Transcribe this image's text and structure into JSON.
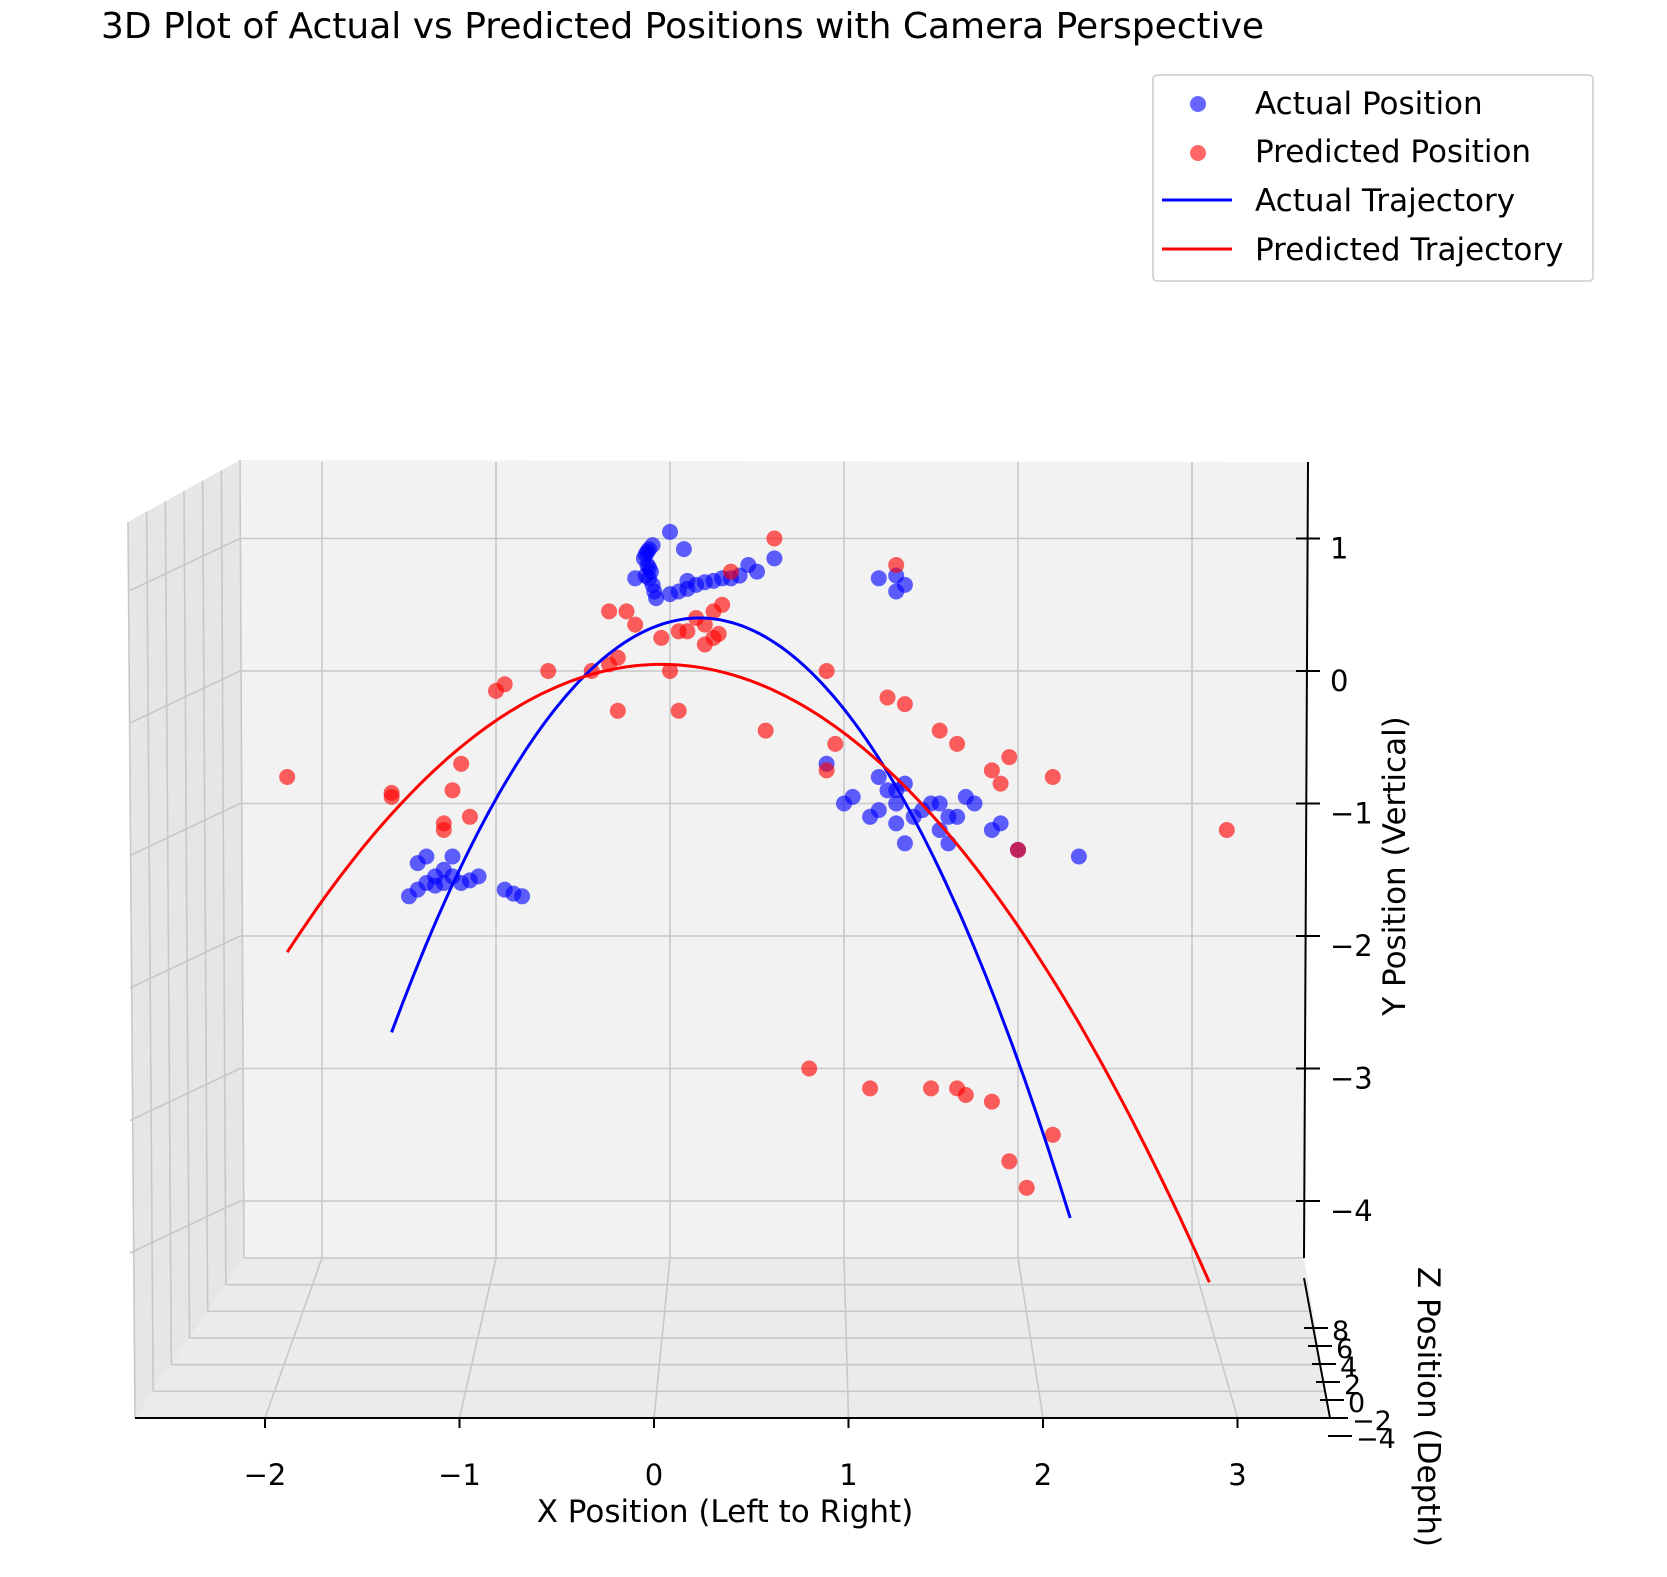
{
  "chart_data": {
    "type": "scatter",
    "projection": "3d",
    "title": "3D Plot of Actual vs Predicted Positions with Camera Perspective",
    "xlabel": "X Position (Left to Right)",
    "ylabel": "Y Position (Vertical)",
    "zlabel": "Z Position (Depth)",
    "xlim": [
      -2.6,
      3.5
    ],
    "ylim": [
      -4.5,
      1.5
    ],
    "zlim": [
      -4,
      9
    ],
    "x_ticks": [
      "−2",
      "−1",
      "0",
      "1",
      "2",
      "3"
    ],
    "y_ticks": [
      "1",
      "0",
      "−1",
      "−2",
      "−3",
      "−4"
    ],
    "z_ticks": [
      "8",
      "6",
      "4",
      "2",
      "0",
      "−2",
      "−4"
    ],
    "grid": true,
    "legend_position": "top-right",
    "legend": [
      "Actual Position",
      "Predicted Position",
      "Actual Trajectory",
      "Predicted Trajectory"
    ],
    "colors": {
      "actual": "#0000ff",
      "predicted": "#ff0000"
    },
    "series": [
      {
        "name": "Actual Position",
        "kind": "scatter",
        "color": "#0000ff",
        "points": [
          [
            -0.1,
            0.95
          ],
          [
            -0.12,
            0.92
          ],
          [
            -0.13,
            0.9
          ],
          [
            -0.14,
            0.88
          ],
          [
            -0.15,
            0.85
          ],
          [
            -0.13,
            0.8
          ],
          [
            -0.12,
            0.78
          ],
          [
            -0.11,
            0.75
          ],
          [
            -0.14,
            0.72
          ],
          [
            -0.12,
            0.7
          ],
          [
            -0.1,
            0.65
          ],
          [
            -0.09,
            0.6
          ],
          [
            -0.08,
            0.55
          ],
          [
            0.0,
            0.58
          ],
          [
            0.05,
            0.6
          ],
          [
            0.1,
            0.62
          ],
          [
            0.15,
            0.65
          ],
          [
            0.2,
            0.67
          ],
          [
            0.25,
            0.68
          ],
          [
            0.3,
            0.7
          ],
          [
            0.4,
            0.72
          ],
          [
            0.5,
            0.75
          ],
          [
            0.45,
            0.8
          ],
          [
            0.6,
            0.85
          ],
          [
            0.1,
            0.68
          ],
          [
            0.08,
            0.92
          ],
          [
            0.0,
            1.05
          ],
          [
            -0.2,
            0.7
          ],
          [
            0.35,
            0.7
          ],
          [
            1.2,
            0.7
          ],
          [
            1.3,
            0.72
          ],
          [
            1.35,
            0.65
          ],
          [
            1.3,
            0.6
          ],
          [
            -1.5,
            -1.7
          ],
          [
            -1.45,
            -1.65
          ],
          [
            -1.4,
            -1.6
          ],
          [
            -1.35,
            -1.62
          ],
          [
            -1.3,
            -1.6
          ],
          [
            -1.25,
            -1.55
          ],
          [
            -1.2,
            -1.6
          ],
          [
            -1.15,
            -1.58
          ],
          [
            -1.1,
            -1.55
          ],
          [
            -1.45,
            -1.45
          ],
          [
            -1.4,
            -1.4
          ],
          [
            -1.3,
            -1.5
          ],
          [
            -1.25,
            -1.4
          ],
          [
            -0.95,
            -1.65
          ],
          [
            -0.9,
            -1.68
          ],
          [
            -0.85,
            -1.7
          ],
          [
            -1.35,
            -1.55
          ],
          [
            0.9,
            -0.7
          ],
          [
            1.0,
            -1.0
          ],
          [
            1.05,
            -0.95
          ],
          [
            1.15,
            -1.1
          ],
          [
            1.2,
            -1.05
          ],
          [
            1.25,
            -0.9
          ],
          [
            1.3,
            -0.9
          ],
          [
            1.3,
            -1.0
          ],
          [
            1.35,
            -0.85
          ],
          [
            1.4,
            -1.1
          ],
          [
            1.45,
            -1.05
          ],
          [
            1.5,
            -1.0
          ],
          [
            1.55,
            -1.0
          ],
          [
            1.6,
            -1.1
          ],
          [
            1.65,
            -1.1
          ],
          [
            1.7,
            -0.95
          ],
          [
            1.75,
            -1.0
          ],
          [
            1.85,
            -1.2
          ],
          [
            1.9,
            -1.15
          ],
          [
            1.35,
            -1.3
          ],
          [
            1.3,
            -1.15
          ],
          [
            1.6,
            -1.3
          ],
          [
            1.2,
            -0.8
          ],
          [
            2.0,
            -1.35
          ],
          [
            2.35,
            -1.4
          ],
          [
            1.55,
            -1.2
          ]
        ]
      },
      {
        "name": "Predicted Position",
        "kind": "scatter",
        "color": "#ff0000",
        "points": [
          [
            0.6,
            1.0
          ],
          [
            1.3,
            0.8
          ],
          [
            0.35,
            0.75
          ],
          [
            -0.35,
            0.45
          ],
          [
            -0.25,
            0.45
          ],
          [
            -0.2,
            0.35
          ],
          [
            0.05,
            0.3
          ],
          [
            -0.05,
            0.25
          ],
          [
            0.15,
            0.4
          ],
          [
            0.2,
            0.35
          ],
          [
            0.25,
            0.45
          ],
          [
            0.3,
            0.5
          ],
          [
            0.1,
            0.3
          ],
          [
            0.25,
            0.25
          ],
          [
            0.2,
            0.2
          ],
          [
            0.28,
            0.28
          ],
          [
            -0.3,
            0.1
          ],
          [
            -0.35,
            0.05
          ],
          [
            -0.45,
            0.0
          ],
          [
            -0.7,
            0.0
          ],
          [
            -0.95,
            -0.1
          ],
          [
            -1.0,
            -0.15
          ],
          [
            -0.3,
            -0.3
          ],
          [
            0.0,
            0.0
          ],
          [
            0.05,
            -0.3
          ],
          [
            0.9,
            0.0
          ],
          [
            1.25,
            -0.2
          ],
          [
            1.35,
            -0.25
          ],
          [
            1.55,
            -0.45
          ],
          [
            1.65,
            -0.55
          ],
          [
            0.55,
            -0.45
          ],
          [
            0.95,
            -0.55
          ],
          [
            0.9,
            -0.75
          ],
          [
            1.85,
            -0.75
          ],
          [
            1.95,
            -0.65
          ],
          [
            1.9,
            -0.85
          ],
          [
            2.2,
            -0.8
          ],
          [
            -1.2,
            -0.7
          ],
          [
            -1.25,
            -0.9
          ],
          [
            -1.15,
            -1.1
          ],
          [
            -1.3,
            -1.15
          ],
          [
            -1.3,
            -1.2
          ],
          [
            -1.6,
            -0.95
          ],
          [
            -1.6,
            -0.92
          ],
          [
            -2.2,
            -0.8
          ],
          [
            3.2,
            -1.2
          ],
          [
            2.0,
            -1.35
          ],
          [
            0.8,
            -3.0
          ],
          [
            1.15,
            -3.15
          ],
          [
            1.5,
            -3.15
          ],
          [
            1.65,
            -3.15
          ],
          [
            1.7,
            -3.2
          ],
          [
            1.85,
            -3.25
          ],
          [
            2.2,
            -3.5
          ],
          [
            1.95,
            -3.7
          ],
          [
            2.05,
            -3.9
          ]
        ]
      },
      {
        "name": "Actual Trajectory",
        "kind": "line",
        "color": "#0000ff",
        "equation": "y = 0.4 - 0.998 * (x - 0.17)^2",
        "x_range": [
          -1.6,
          2.3
        ]
      },
      {
        "name": "Predicted Trajectory",
        "kind": "line",
        "color": "#ff0000",
        "equation": "y = 0.05 - 0.47 * (x + 0.05)^2",
        "x_range": [
          -2.2,
          3.1
        ]
      }
    ]
  }
}
